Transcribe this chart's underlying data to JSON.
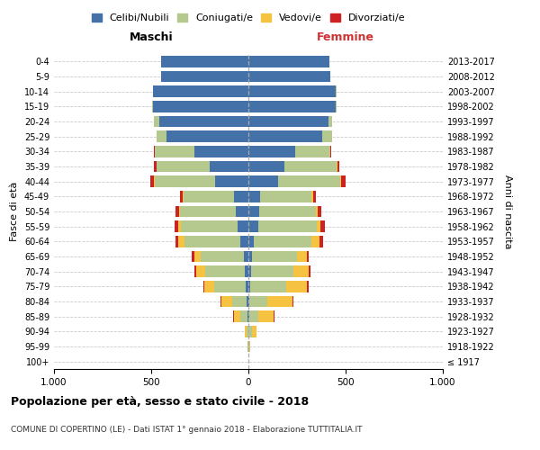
{
  "age_groups": [
    "100+",
    "95-99",
    "90-94",
    "85-89",
    "80-84",
    "75-79",
    "70-74",
    "65-69",
    "60-64",
    "55-59",
    "50-54",
    "45-49",
    "40-44",
    "35-39",
    "30-34",
    "25-29",
    "20-24",
    "15-19",
    "10-14",
    "5-9",
    "0-4"
  ],
  "birth_years": [
    "≤ 1917",
    "1918-1922",
    "1923-1927",
    "1928-1932",
    "1933-1937",
    "1938-1942",
    "1943-1947",
    "1948-1952",
    "1953-1957",
    "1958-1962",
    "1963-1967",
    "1968-1972",
    "1973-1977",
    "1978-1982",
    "1983-1987",
    "1988-1992",
    "1993-1997",
    "1998-2002",
    "2003-2007",
    "2008-2012",
    "2013-2017"
  ],
  "colors": {
    "celibe": "#4472a8",
    "coniugato": "#b5c98e",
    "vedovo": "#f5c242",
    "divorziato": "#cc2222"
  },
  "maschi": {
    "celibe": [
      0,
      1,
      2,
      5,
      8,
      15,
      20,
      25,
      40,
      55,
      65,
      75,
      170,
      200,
      280,
      420,
      460,
      490,
      490,
      450,
      450
    ],
    "coniugato": [
      0,
      2,
      8,
      35,
      75,
      160,
      200,
      220,
      290,
      290,
      285,
      260,
      310,
      270,
      200,
      50,
      25,
      5,
      2,
      0,
      0
    ],
    "vedovo": [
      0,
      2,
      10,
      35,
      55,
      50,
      50,
      35,
      30,
      15,
      8,
      5,
      5,
      3,
      2,
      0,
      0,
      0,
      0,
      0,
      0
    ],
    "divorziato": [
      0,
      0,
      0,
      2,
      5,
      8,
      10,
      12,
      15,
      18,
      18,
      12,
      18,
      12,
      5,
      3,
      0,
      0,
      0,
      0,
      0
    ]
  },
  "femmine": {
    "nubile": [
      0,
      1,
      2,
      5,
      5,
      10,
      15,
      20,
      30,
      50,
      55,
      60,
      155,
      185,
      240,
      380,
      410,
      450,
      450,
      420,
      415
    ],
    "coniugata": [
      0,
      3,
      15,
      45,
      90,
      185,
      215,
      230,
      295,
      300,
      290,
      265,
      315,
      270,
      180,
      50,
      20,
      5,
      2,
      0,
      0
    ],
    "vedova": [
      0,
      4,
      25,
      80,
      130,
      105,
      80,
      50,
      40,
      20,
      10,
      8,
      8,
      4,
      2,
      0,
      0,
      0,
      0,
      0,
      0
    ],
    "divorziata": [
      0,
      0,
      0,
      2,
      5,
      8,
      10,
      12,
      18,
      25,
      22,
      15,
      20,
      10,
      5,
      2,
      0,
      0,
      0,
      0,
      0
    ]
  },
  "xlim": 1000,
  "title": "Popolazione per età, sesso e stato civile - 2018",
  "subtitle": "COMUNE DI COPERTINO (LE) - Dati ISTAT 1° gennaio 2018 - Elaborazione TUTTITALIA.IT",
  "ylabel": "Fasce di età",
  "ylabel_right": "Anni di nascita",
  "legend_labels": [
    "Celibi/Nubili",
    "Coniugati/e",
    "Vedovi/e",
    "Divorziati/e"
  ],
  "header_maschi": "Maschi",
  "header_femmine": "Femmine"
}
